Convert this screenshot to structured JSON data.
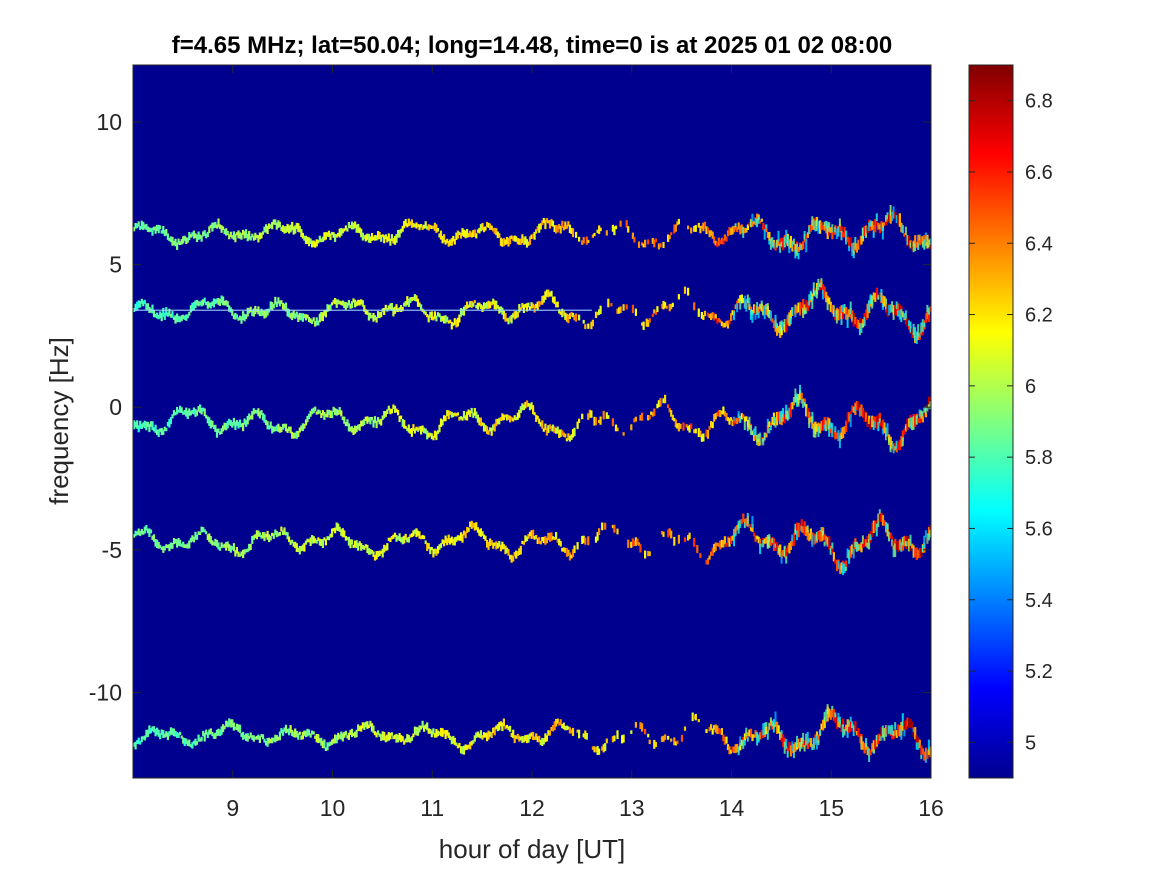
{
  "chart_data": {
    "type": "heatmap",
    "title": "f=4.65 MHz;  lat=50.04; long=14.48, time=0 is at 2025 01 02 08:00",
    "xlabel": "hour of day [UT]",
    "ylabel": "frequency [Hz]",
    "xlim": [
      8.0,
      16.0
    ],
    "ylim": [
      -13.0,
      12.0
    ],
    "x_ticks": [
      9,
      10,
      11,
      12,
      13,
      14,
      15,
      16
    ],
    "x_tick_labels": [
      "9",
      "10",
      "11",
      "12",
      "13",
      "14",
      "15",
      "16"
    ],
    "y_ticks": [
      10,
      5,
      0,
      -5,
      -10
    ],
    "y_tick_labels": [
      "10",
      "5",
      "0",
      "-5",
      "-10"
    ],
    "colormap": "jet",
    "background_color": "#00008f",
    "color_limits": [
      4.9,
      6.9
    ],
    "colorbar_ticks": [
      6.8,
      6.6,
      6.4,
      6.2,
      6.0,
      5.8,
      5.6,
      5.4,
      5.2,
      5.0
    ],
    "colorbar_tick_labels": [
      "6.8",
      "6.6",
      "6.4",
      "6.2",
      "6",
      "5.8",
      "5.6",
      "5.4",
      "5.2",
      "5"
    ],
    "grid": false,
    "traces": [
      {
        "center_hz": 6.1,
        "amplitude_hz": [
          0.35,
          0.7
        ],
        "intensity": [
          5.6,
          6.9
        ]
      },
      {
        "center_hz": 3.4,
        "amplitude_hz": [
          0.4,
          0.9
        ],
        "intensity": [
          5.5,
          6.9
        ]
      },
      {
        "center_hz": -0.5,
        "amplitude_hz": [
          0.5,
          0.9
        ],
        "intensity": [
          5.5,
          6.9
        ]
      },
      {
        "center_hz": -4.7,
        "amplitude_hz": [
          0.45,
          0.9
        ],
        "intensity": [
          5.6,
          6.9
        ]
      },
      {
        "center_hz": -11.5,
        "amplitude_hz": [
          0.35,
          0.8
        ],
        "intensity": [
          5.5,
          6.9
        ]
      }
    ],
    "constant_line_hz": 3.4,
    "constant_line_x_range": [
      8.0,
      12.6
    ]
  }
}
